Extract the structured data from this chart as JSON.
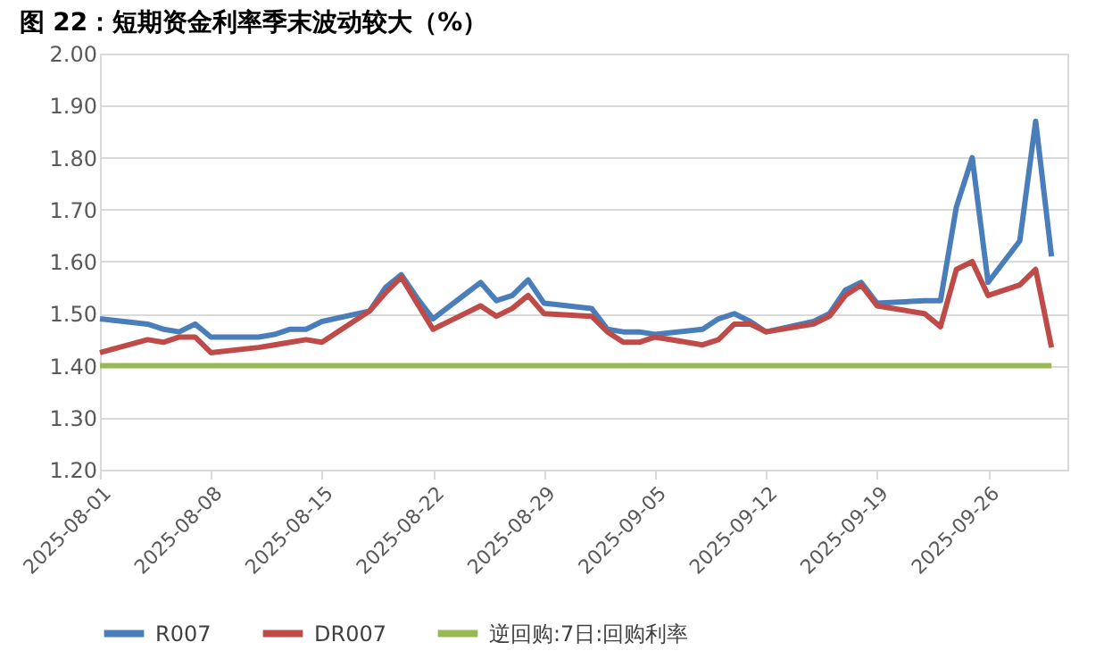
{
  "chart_data": {
    "type": "line",
    "title": "图 22：短期资金利率季末波动较大（%）",
    "x": [
      "2025-08-01",
      "2025-08-04",
      "2025-08-05",
      "2025-08-06",
      "2025-08-07",
      "2025-08-08",
      "2025-08-11",
      "2025-08-12",
      "2025-08-13",
      "2025-08-14",
      "2025-08-15",
      "2025-08-18",
      "2025-08-19",
      "2025-08-20",
      "2025-08-21",
      "2025-08-22",
      "2025-08-25",
      "2025-08-26",
      "2025-08-27",
      "2025-08-28",
      "2025-08-29",
      "2025-09-01",
      "2025-09-02",
      "2025-09-03",
      "2025-09-04",
      "2025-09-05",
      "2025-09-08",
      "2025-09-09",
      "2025-09-10",
      "2025-09-11",
      "2025-09-12",
      "2025-09-15",
      "2025-09-16",
      "2025-09-17",
      "2025-09-18",
      "2025-09-19",
      "2025-09-22",
      "2025-09-23",
      "2025-09-24",
      "2025-09-25",
      "2025-09-26",
      "2025-09-28",
      "2025-09-29",
      "2025-09-30"
    ],
    "series": [
      {
        "name": "R007",
        "color": "#4a7ebb",
        "values": [
          1.49,
          1.48,
          1.47,
          1.465,
          1.48,
          1.455,
          1.455,
          1.46,
          1.47,
          1.47,
          1.485,
          1.505,
          1.55,
          1.575,
          1.53,
          1.49,
          1.56,
          1.525,
          1.535,
          1.565,
          1.52,
          1.51,
          1.47,
          1.465,
          1.465,
          1.46,
          1.47,
          1.49,
          1.5,
          1.485,
          1.465,
          1.485,
          1.5,
          1.545,
          1.56,
          1.52,
          1.525,
          1.525,
          1.705,
          1.8,
          1.56,
          1.64,
          1.87,
          1.61
        ]
      },
      {
        "name": "DR007",
        "color": "#be4b48",
        "values": [
          1.425,
          1.45,
          1.445,
          1.455,
          1.455,
          1.425,
          1.435,
          1.44,
          1.445,
          1.45,
          1.445,
          1.505,
          1.54,
          1.57,
          1.52,
          1.47,
          1.515,
          1.495,
          1.51,
          1.535,
          1.5,
          1.495,
          1.465,
          1.445,
          1.445,
          1.455,
          1.44,
          1.45,
          1.48,
          1.48,
          1.465,
          1.48,
          1.495,
          1.535,
          1.555,
          1.515,
          1.5,
          1.475,
          1.585,
          1.6,
          1.535,
          1.555,
          1.585,
          1.435
        ]
      },
      {
        "name": "逆回购:7日:回购利率",
        "color": "#98b954",
        "values": [
          1.4,
          1.4,
          1.4,
          1.4,
          1.4,
          1.4,
          1.4,
          1.4,
          1.4,
          1.4,
          1.4,
          1.4,
          1.4,
          1.4,
          1.4,
          1.4,
          1.4,
          1.4,
          1.4,
          1.4,
          1.4,
          1.4,
          1.4,
          1.4,
          1.4,
          1.4,
          1.4,
          1.4,
          1.4,
          1.4,
          1.4,
          1.4,
          1.4,
          1.4,
          1.4,
          1.4,
          1.4,
          1.4,
          1.4,
          1.4,
          1.4,
          1.4,
          1.4,
          1.4
        ]
      }
    ],
    "xlim": [
      "2025-08-01",
      "2025-10-01"
    ],
    "xticks": [
      "2025-08-01",
      "2025-08-08",
      "2025-08-15",
      "2025-08-22",
      "2025-08-29",
      "2025-09-05",
      "2025-09-12",
      "2025-09-19",
      "2025-09-26"
    ],
    "ylim": [
      1.2,
      2.0
    ],
    "yticks": [
      {
        "value": 1.2,
        "label": "1.20"
      },
      {
        "value": 1.3,
        "label": "1.30"
      },
      {
        "value": 1.4,
        "label": "1.40"
      },
      {
        "value": 1.5,
        "label": "1.50"
      },
      {
        "value": 1.6,
        "label": "1.60"
      },
      {
        "value": 1.7,
        "label": "1.70"
      },
      {
        "value": 1.8,
        "label": "1.80"
      },
      {
        "value": 1.9,
        "label": "1.90"
      },
      {
        "value": 2.0,
        "label": "2.00"
      }
    ],
    "grid": "y",
    "legend": "bottom",
    "marker": "none",
    "line_style": "solid"
  }
}
